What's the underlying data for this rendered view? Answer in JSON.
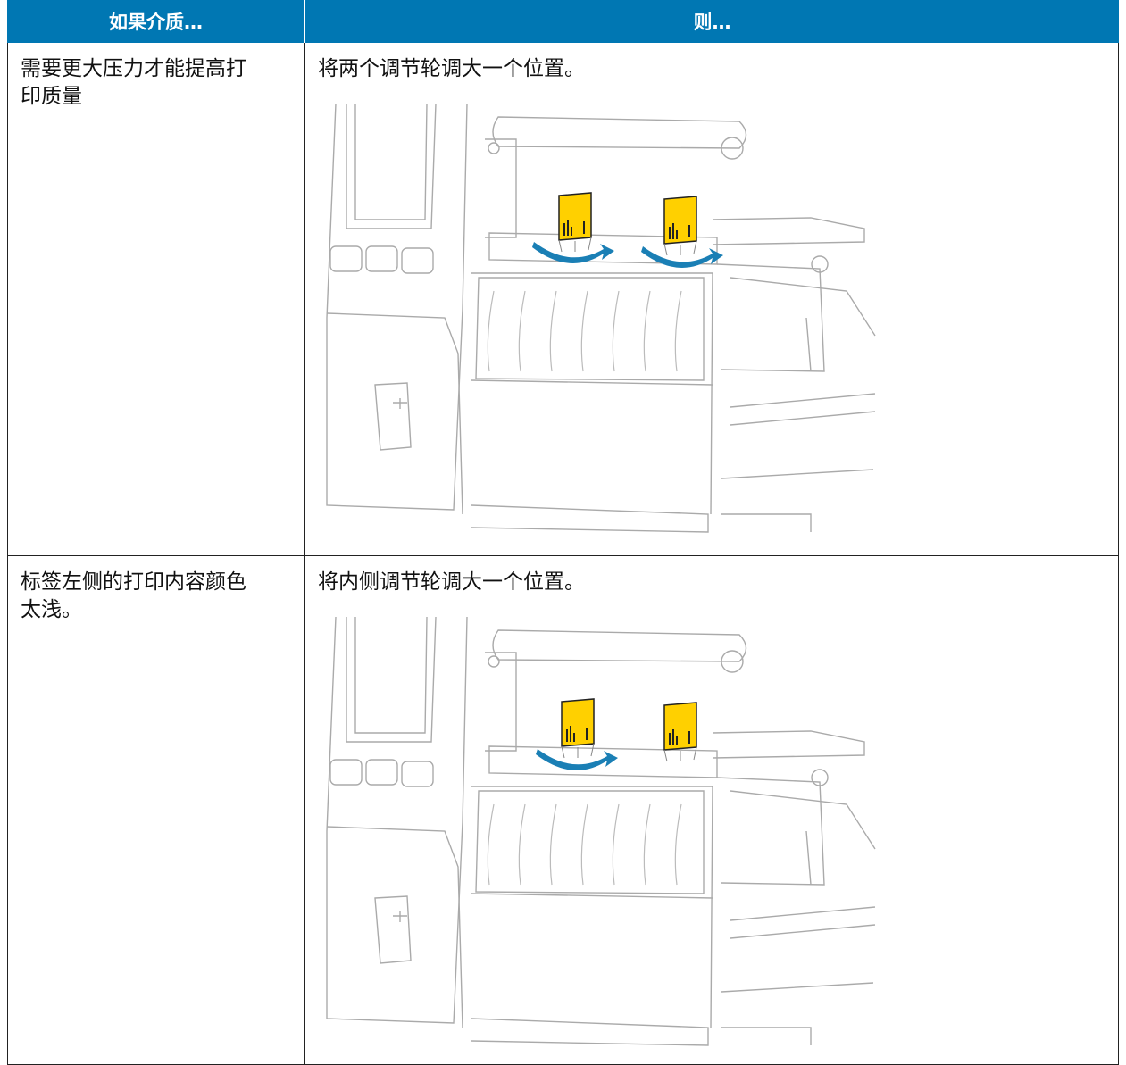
{
  "header": {
    "col1": "如果介质…",
    "col2": "则…"
  },
  "rows": [
    {
      "condition": "需要更大压力才能提高打印质量",
      "action": "将两个调节轮调大一个位置。"
    },
    {
      "condition": "标签左侧的打印内容颜色太浅。",
      "action": "将内侧调节轮调大一个位置。"
    }
  ]
}
